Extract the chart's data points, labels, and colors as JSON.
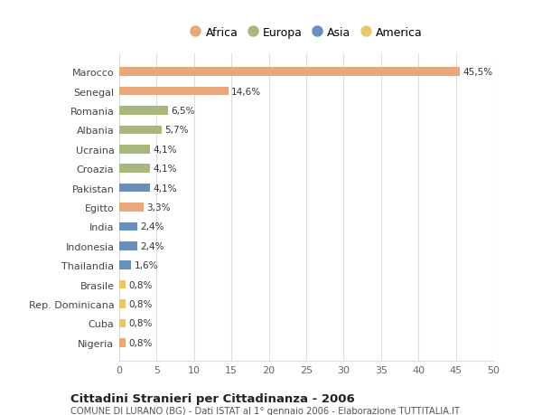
{
  "countries": [
    "Marocco",
    "Senegal",
    "Romania",
    "Albania",
    "Ucraina",
    "Croazia",
    "Pakistan",
    "Egitto",
    "India",
    "Indonesia",
    "Thailandia",
    "Brasile",
    "Rep. Dominicana",
    "Cuba",
    "Nigeria"
  ],
  "values": [
    45.5,
    14.6,
    6.5,
    5.7,
    4.1,
    4.1,
    4.1,
    3.3,
    2.4,
    2.4,
    1.6,
    0.8,
    0.8,
    0.8,
    0.8
  ],
  "labels": [
    "45,5%",
    "14,6%",
    "6,5%",
    "5,7%",
    "4,1%",
    "4,1%",
    "4,1%",
    "3,3%",
    "2,4%",
    "2,4%",
    "1,6%",
    "0,8%",
    "0,8%",
    "0,8%",
    "0,8%"
  ],
  "continents": [
    "Africa",
    "Africa",
    "Europa",
    "Europa",
    "Europa",
    "Europa",
    "Asia",
    "Africa",
    "Asia",
    "Asia",
    "Asia",
    "America",
    "America",
    "America",
    "Africa"
  ],
  "colors": {
    "Africa": "#E8A87C",
    "Europa": "#A8B87C",
    "Asia": "#6A8FBF",
    "America": "#E8C86A"
  },
  "legend_order": [
    "Africa",
    "Europa",
    "Asia",
    "America"
  ],
  "title": "Cittadini Stranieri per Cittadinanza - 2006",
  "subtitle": "COMUNE DI LURANO (BG) - Dati ISTAT al 1° gennaio 2006 - Elaborazione TUTTITALIA.IT",
  "xlim": [
    0,
    50
  ],
  "xticks": [
    0,
    5,
    10,
    15,
    20,
    25,
    30,
    35,
    40,
    45,
    50
  ],
  "background_color": "#ffffff",
  "grid_color": "#dddddd",
  "bar_height": 0.45
}
